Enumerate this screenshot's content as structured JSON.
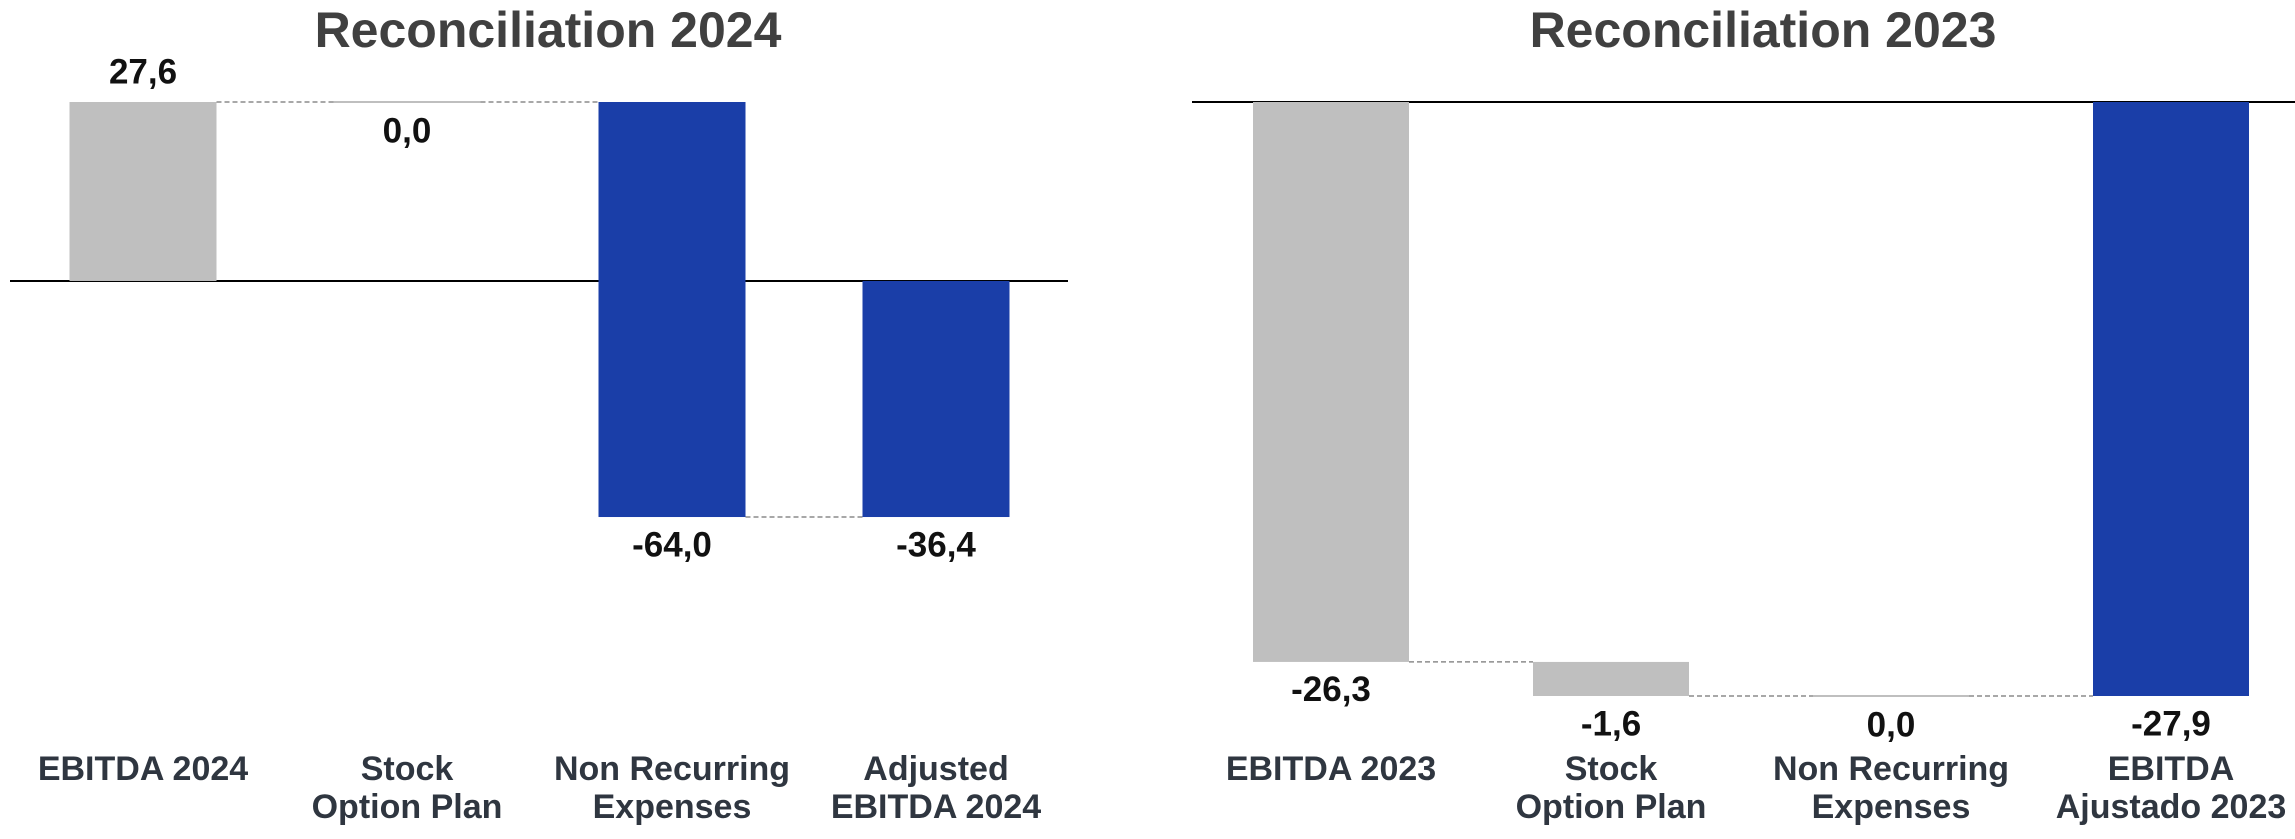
{
  "colors": {
    "total_bar": "#bfbfbf",
    "adjustment_bar": "#1a3ea8",
    "title_text": "#404040",
    "label_text": "#111111",
    "category_text": "#2f3640"
  },
  "chart_data": [
    {
      "type": "waterfall",
      "title": "Reconciliation 2024",
      "ylim": [
        -64.0,
        27.6
      ],
      "grid": false,
      "categories": [
        "EBITDA 2024",
        "Stock Option Plan",
        "Non Recurring Expenses",
        "Adjusted EBITDA 2024"
      ],
      "category_lines": [
        [
          "EBITDA 2024"
        ],
        [
          "Stock",
          "Option Plan"
        ],
        [
          "Non Recurring",
          "Expenses"
        ],
        [
          "Adjusted",
          "EBITDA 2024"
        ]
      ],
      "steps": [
        {
          "kind": "total",
          "value": 27.6,
          "label": "27,6"
        },
        {
          "kind": "delta",
          "value": 0.0,
          "label": "0,0"
        },
        {
          "kind": "delta",
          "value": -64.0,
          "label": "-64,0"
        },
        {
          "kind": "total",
          "value": -36.4,
          "label": "-36,4"
        }
      ]
    },
    {
      "type": "waterfall",
      "title": "Reconciliation 2023",
      "ylim": [
        -27.9,
        0
      ],
      "grid": false,
      "categories": [
        "EBITDA 2023",
        "Stock Option Plan",
        "Non Recurring Expenses",
        "EBITDA Ajustado 2023"
      ],
      "category_lines": [
        [
          "EBITDA 2023"
        ],
        [
          "Stock",
          "Option Plan"
        ],
        [
          "Non Recurring",
          "Expenses"
        ],
        [
          "EBITDA",
          "Ajustado 2023"
        ]
      ],
      "steps": [
        {
          "kind": "total",
          "value": -26.3,
          "label": "-26,3"
        },
        {
          "kind": "delta",
          "value": -1.6,
          "label": "-1,6"
        },
        {
          "kind": "delta",
          "value": 0.0,
          "label": "0,0"
        },
        {
          "kind": "total",
          "value": -27.9,
          "label": "-27,9"
        }
      ]
    }
  ]
}
